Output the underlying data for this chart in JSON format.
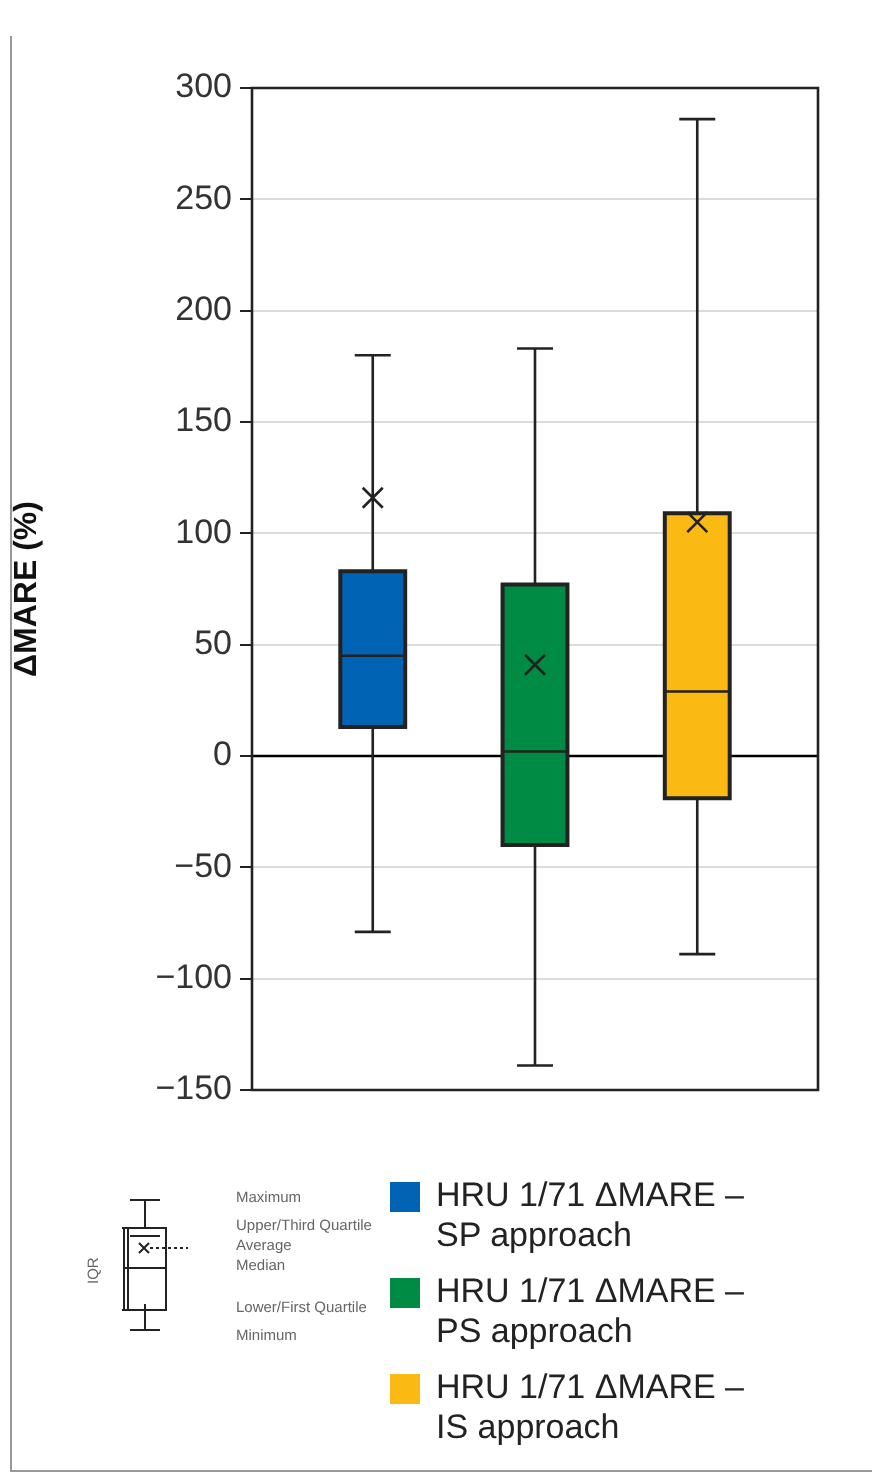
{
  "chart_data": {
    "type": "box",
    "ylabel": "ΔMARE (%)",
    "categories": [
      null
    ],
    "ylim": [
      -150,
      300
    ],
    "yticks": [
      {
        "value": -150,
        "label": "−150"
      },
      {
        "value": -100,
        "label": "−100"
      },
      {
        "value": -50,
        "label": "−50"
      },
      0,
      50,
      100,
      150,
      200,
      250,
      300
    ],
    "grid": "y",
    "legend": "bottom",
    "ref_lines": [
      {
        "axis": "y",
        "value": 0,
        "color": "#000000"
      }
    ],
    "series": [
      {
        "name": "HRU 1/71 ΔMARE – SP approach",
        "color": "#0063b4",
        "boxes": [
          {
            "low": -79,
            "q1": 13,
            "median": 45,
            "q3": 83,
            "high": 180,
            "mean": 116
          }
        ]
      },
      {
        "name": "HRU 1/71 ΔMARE – PS approach",
        "color": "#008b45",
        "boxes": [
          {
            "low": -139,
            "q1": -40,
            "median": 2,
            "q3": 77,
            "high": 183,
            "mean": 41
          }
        ]
      },
      {
        "name": "HRU 1/71 ΔMARE – IS approach",
        "color": "#fbb913",
        "boxes": [
          {
            "low": -89,
            "q1": -19,
            "median": 29,
            "q3": 109,
            "high": 286,
            "mean": 105
          }
        ]
      }
    ],
    "annotations": [
      "Maximum",
      "Upper/Third Quartile",
      "Average",
      "Median",
      "Lower/First Quartile",
      "Minimum",
      "IQR"
    ]
  }
}
